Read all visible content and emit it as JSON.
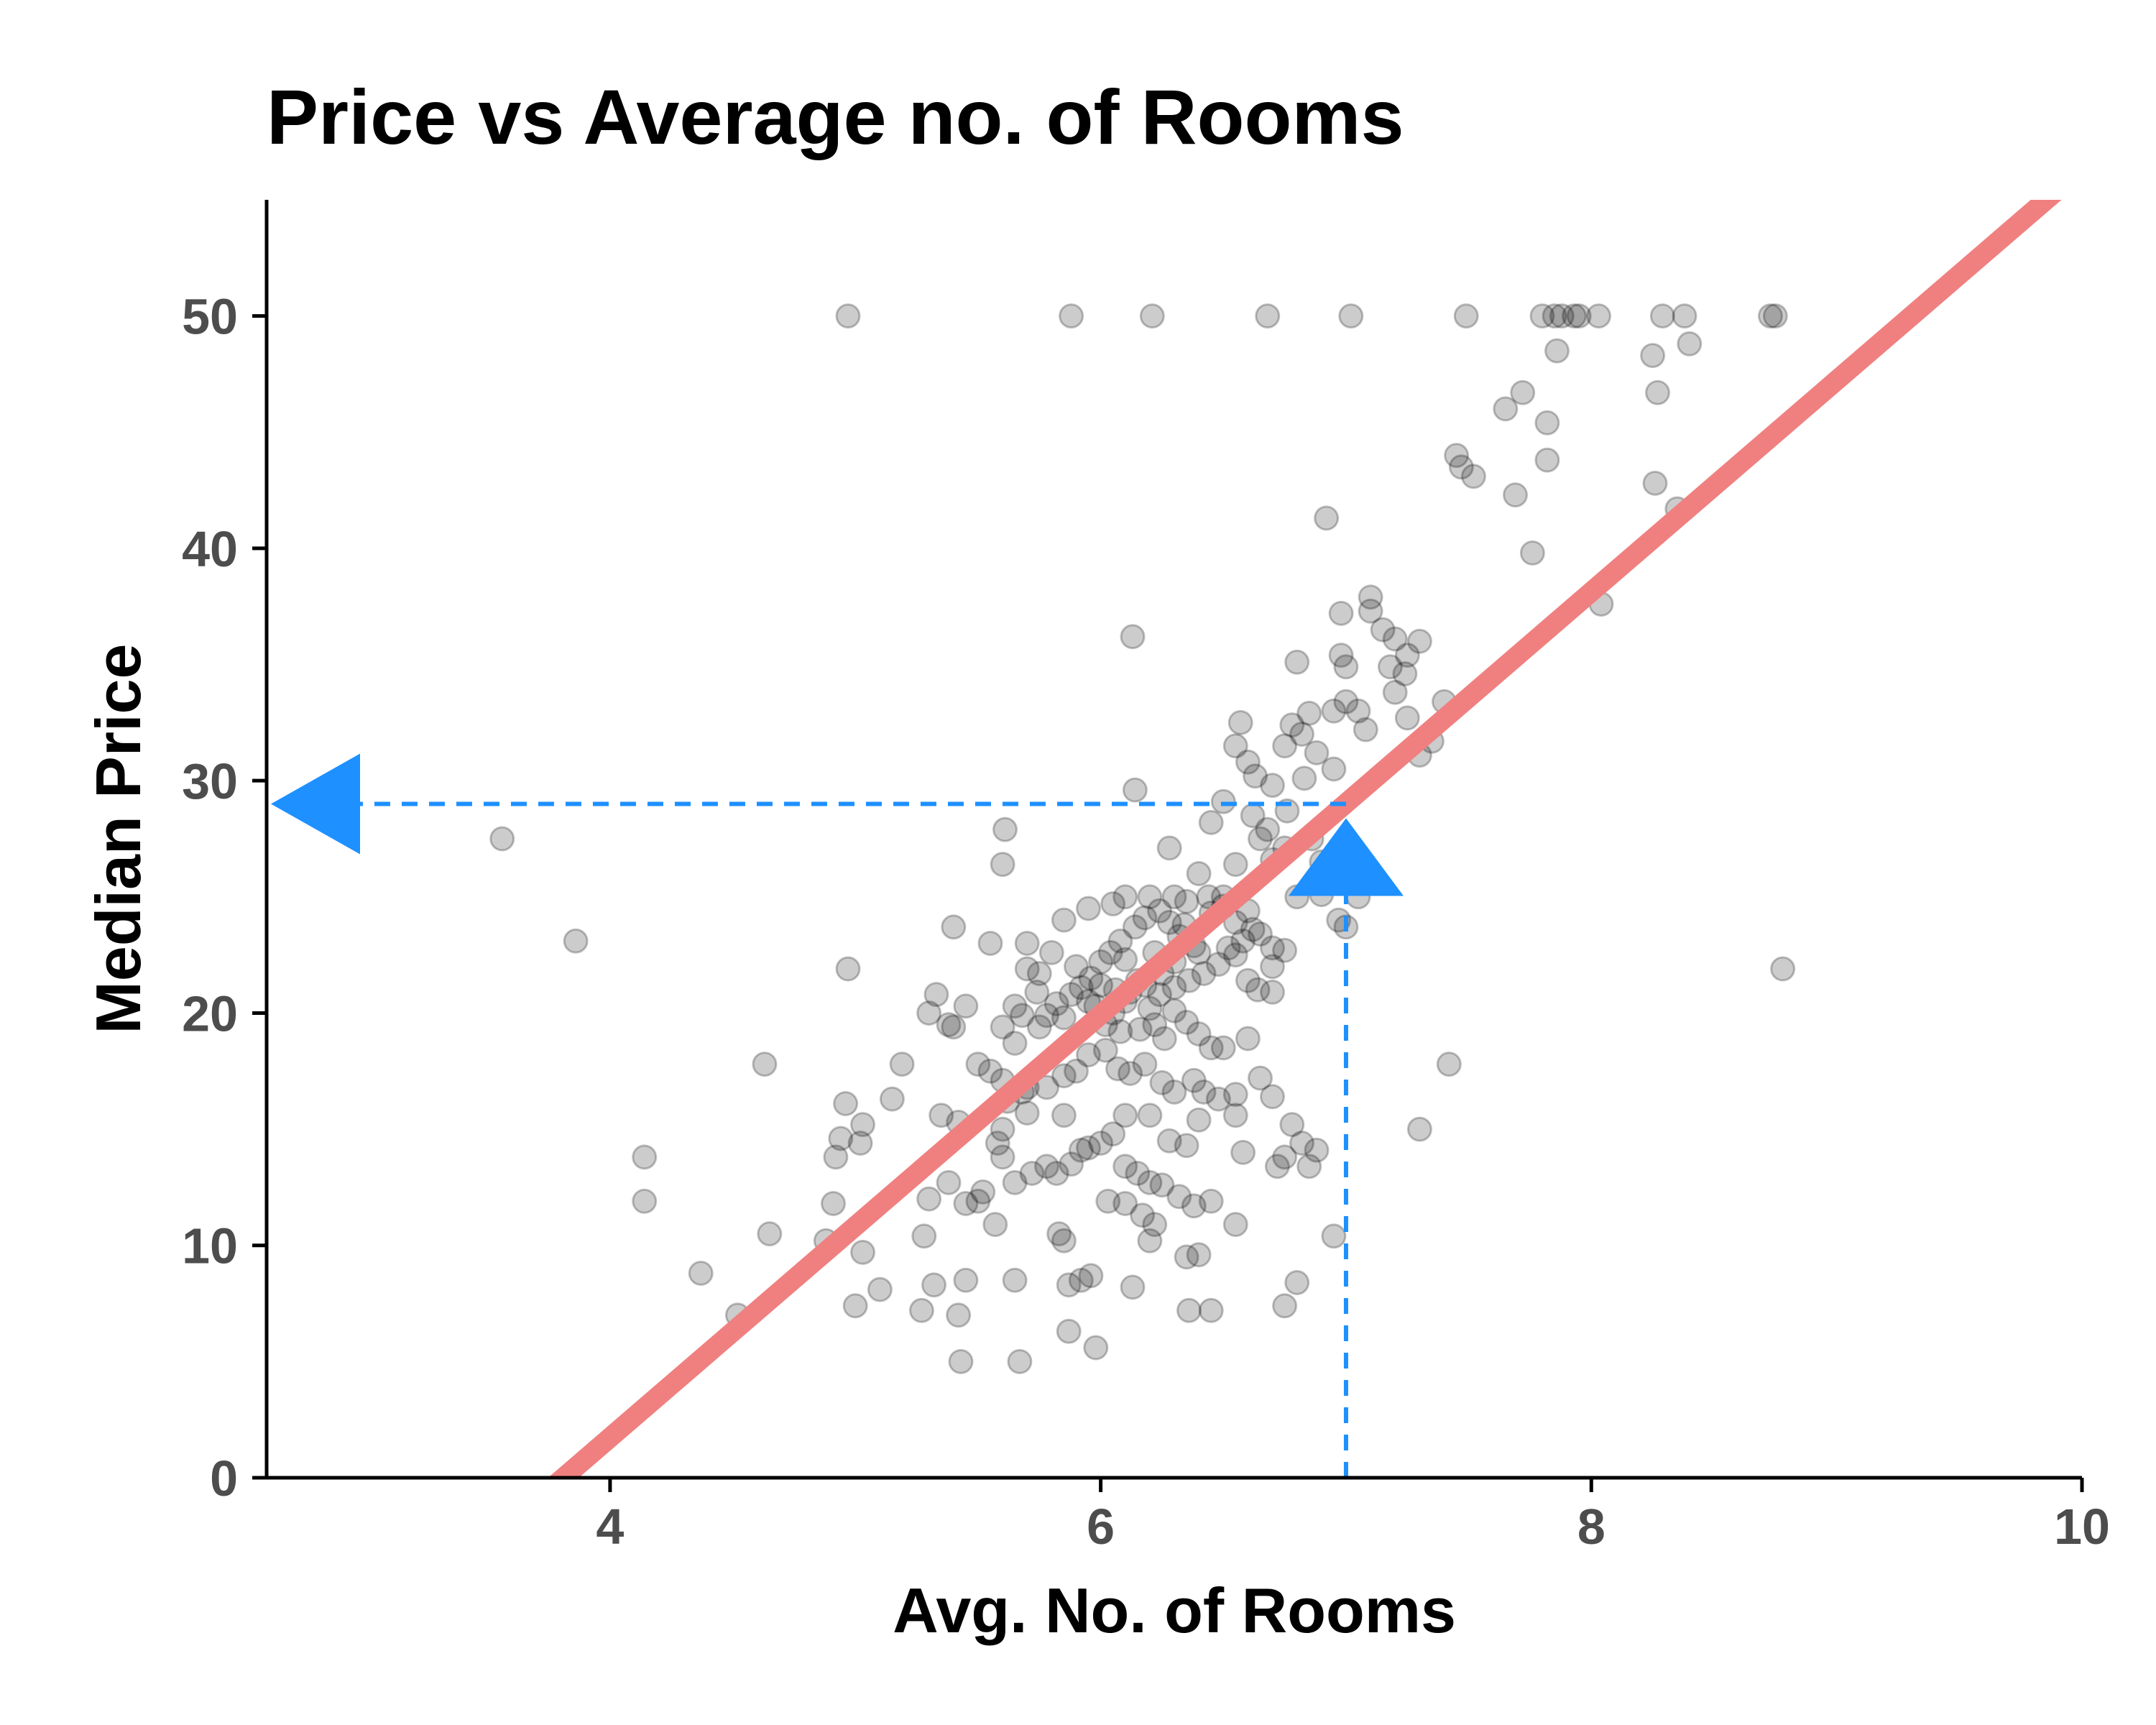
{
  "chart_data": {
    "type": "scatter",
    "title": "Price vs Average no. of Rooms",
    "xlabel": "Avg. No. of Rooms",
    "ylabel": "Median Price",
    "xlim": [
      2.6,
      10
    ],
    "ylim": [
      0,
      55
    ],
    "xticks": [
      4,
      6,
      8,
      10
    ],
    "yticks": [
      0,
      10,
      20,
      30,
      40,
      50
    ],
    "grid": false,
    "point_color": "#000000",
    "point_opacity": 0.2,
    "fit_line": {
      "color": "#F08080",
      "intercept": -34.67,
      "slope": 9.1
    },
    "prediction": {
      "color": "#1E90FF",
      "x": 7,
      "y": 29
    },
    "points": [
      [
        4.97,
        50
      ],
      [
        5.88,
        50
      ],
      [
        6.21,
        50
      ],
      [
        6.68,
        50
      ],
      [
        7.02,
        50
      ],
      [
        7.49,
        50
      ],
      [
        7.8,
        50
      ],
      [
        7.85,
        50
      ],
      [
        7.88,
        50
      ],
      [
        7.93,
        50
      ],
      [
        7.95,
        50
      ],
      [
        8.03,
        50
      ],
      [
        8.29,
        50
      ],
      [
        8.38,
        50
      ],
      [
        8.73,
        50
      ],
      [
        8.75,
        50
      ],
      [
        8.4,
        48.8
      ],
      [
        8.25,
        48.3
      ],
      [
        7.86,
        48.5
      ],
      [
        8.27,
        46.7
      ],
      [
        7.82,
        45.4
      ],
      [
        7.72,
        46.7
      ],
      [
        7.65,
        46
      ],
      [
        7.82,
        43.8
      ],
      [
        8.26,
        42.8
      ],
      [
        8.35,
        41.7
      ],
      [
        7.45,
        44
      ],
      [
        7.47,
        43.5
      ],
      [
        7.52,
        43.1
      ],
      [
        7.69,
        42.3
      ],
      [
        7.76,
        39.8
      ],
      [
        8.04,
        37.6
      ],
      [
        6.92,
        41.3
      ],
      [
        7.1,
        37.9
      ],
      [
        7.1,
        37.3
      ],
      [
        6.98,
        37.2
      ],
      [
        7.15,
        36.5
      ],
      [
        7.2,
        36.1
      ],
      [
        7.25,
        35.4
      ],
      [
        7.3,
        36
      ],
      [
        7.18,
        34.9
      ],
      [
        6.98,
        35.4
      ],
      [
        7.0,
        34.9
      ],
      [
        6.8,
        35.1
      ],
      [
        7.24,
        34.6
      ],
      [
        7.2,
        33.8
      ],
      [
        7.4,
        33.4
      ],
      [
        6.13,
        36.2
      ],
      [
        6.95,
        33
      ],
      [
        7.05,
        33
      ],
      [
        7.0,
        33.4
      ],
      [
        6.85,
        32.9
      ],
      [
        6.78,
        32.4
      ],
      [
        6.82,
        32
      ],
      [
        7.08,
        32.2
      ],
      [
        6.88,
        31.2
      ],
      [
        6.75,
        31.5
      ],
      [
        6.57,
        32.5
      ],
      [
        6.55,
        31.5
      ],
      [
        6.6,
        30.8
      ],
      [
        6.63,
        30.2
      ],
      [
        6.7,
        29.8
      ],
      [
        7.3,
        31.1
      ],
      [
        7.35,
        31.7
      ],
      [
        7.25,
        32.7
      ],
      [
        6.95,
        30.5
      ],
      [
        6.83,
        30.1
      ],
      [
        6.14,
        29.6
      ],
      [
        6.5,
        29.1
      ],
      [
        6.45,
        28.2
      ],
      [
        6.62,
        28.5
      ],
      [
        6.68,
        27.9
      ],
      [
        6.76,
        28.7
      ],
      [
        6.65,
        27.5
      ],
      [
        6.86,
        27.5
      ],
      [
        5.61,
        27.9
      ],
      [
        6.28,
        27.1
      ],
      [
        6.55,
        26.4
      ],
      [
        6.7,
        26.6
      ],
      [
        6.75,
        27.1
      ],
      [
        6.9,
        26.5
      ],
      [
        3.56,
        27.5
      ],
      [
        5.6,
        26.4
      ],
      [
        6.4,
        26
      ],
      [
        6.8,
        25
      ],
      [
        6.9,
        25.1
      ],
      [
        7.05,
        25
      ],
      [
        6.97,
        24
      ],
      [
        7.0,
        23.7
      ],
      [
        3.86,
        23.1
      ],
      [
        4.97,
        21.9
      ],
      [
        8.78,
        21.9
      ],
      [
        5.4,
        23.7
      ],
      [
        5.55,
        23
      ],
      [
        5.7,
        23
      ],
      [
        5.85,
        24
      ],
      [
        5.95,
        24.5
      ],
      [
        6.05,
        24.7
      ],
      [
        6.1,
        25
      ],
      [
        6.2,
        25
      ],
      [
        6.3,
        25
      ],
      [
        6.35,
        24.8
      ],
      [
        6.45,
        24.3
      ],
      [
        6.5,
        24.6
      ],
      [
        6.55,
        23.9
      ],
      [
        6.6,
        24.4
      ],
      [
        6.65,
        23.4
      ],
      [
        6.7,
        22.8
      ],
      [
        6.55,
        22.5
      ],
      [
        6.4,
        22.6
      ],
      [
        6.3,
        22.2
      ],
      [
        6.25,
        21.7
      ],
      [
        6.15,
        21.4
      ],
      [
        6.0,
        21.2
      ],
      [
        5.9,
        22
      ],
      [
        5.8,
        22.6
      ],
      [
        5.75,
        21.7
      ],
      [
        5.7,
        21.9
      ],
      [
        5.65,
        20.3
      ],
      [
        5.6,
        19.4
      ],
      [
        5.65,
        18.7
      ],
      [
        5.75,
        19.4
      ],
      [
        5.85,
        19.8
      ],
      [
        5.95,
        20.5
      ],
      [
        6.05,
        20
      ],
      [
        6.1,
        20.5
      ],
      [
        6.2,
        20.2
      ],
      [
        6.3,
        20.1
      ],
      [
        6.35,
        19.6
      ],
      [
        6.4,
        19.1
      ],
      [
        6.45,
        18.5
      ],
      [
        6.5,
        18.5
      ],
      [
        6.6,
        18.9
      ],
      [
        6.7,
        20.9
      ],
      [
        6.75,
        22.7
      ],
      [
        5.3,
        20
      ],
      [
        5.33,
        20.8
      ],
      [
        5.38,
        19.5
      ],
      [
        5.4,
        19.4
      ],
      [
        5.45,
        20.3
      ],
      [
        5.5,
        17.8
      ],
      [
        5.55,
        17.5
      ],
      [
        5.6,
        17.1
      ],
      [
        5.62,
        16.2
      ],
      [
        5.68,
        16.6
      ],
      [
        5.7,
        16.8
      ],
      [
        5.78,
        16.8
      ],
      [
        5.85,
        17.3
      ],
      [
        5.9,
        17.5
      ],
      [
        5.95,
        18.2
      ],
      [
        6.02,
        18.4
      ],
      [
        6.07,
        17.6
      ],
      [
        6.12,
        17.4
      ],
      [
        6.18,
        17.8
      ],
      [
        6.25,
        17
      ],
      [
        6.3,
        16.6
      ],
      [
        6.38,
        17.1
      ],
      [
        6.42,
        16.6
      ],
      [
        6.48,
        16.3
      ],
      [
        6.55,
        16.5
      ],
      [
        6.65,
        17.2
      ],
      [
        6.7,
        16.4
      ],
      [
        6.78,
        15.2
      ],
      [
        6.82,
        14.4
      ],
      [
        6.88,
        14.1
      ],
      [
        6.75,
        13.8
      ],
      [
        6.72,
        13.4
      ],
      [
        6.85,
        13.4
      ],
      [
        6.58,
        14
      ],
      [
        6.55,
        15.6
      ],
      [
        6.4,
        15.4
      ],
      [
        6.35,
        14.3
      ],
      [
        6.28,
        14.5
      ],
      [
        6.2,
        15.6
      ],
      [
        6.1,
        15.6
      ],
      [
        6.05,
        14.8
      ],
      [
        6.0,
        14.4
      ],
      [
        5.95,
        14.2
      ],
      [
        5.88,
        13.5
      ],
      [
        5.82,
        13.1
      ],
      [
        5.78,
        13.4
      ],
      [
        5.72,
        13.1
      ],
      [
        5.65,
        12.7
      ],
      [
        5.6,
        13.8
      ],
      [
        5.52,
        12.3
      ],
      [
        5.5,
        11.9
      ],
      [
        5.45,
        11.8
      ],
      [
        5.38,
        12.7
      ],
      [
        5.3,
        12
      ],
      [
        5.28,
        10.4
      ],
      [
        5.57,
        10.9
      ],
      [
        5.6,
        15
      ],
      [
        5.7,
        15.7
      ],
      [
        5.85,
        15.6
      ],
      [
        5.92,
        14.1
      ],
      [
        6.1,
        13.4
      ],
      [
        6.15,
        13.1
      ],
      [
        6.2,
        12.7
      ],
      [
        6.25,
        12.6
      ],
      [
        6.32,
        12.1
      ],
      [
        6.38,
        11.7
      ],
      [
        6.45,
        11.9
      ],
      [
        6.55,
        10.9
      ],
      [
        6.17,
        11.3
      ],
      [
        6.1,
        11.8
      ],
      [
        6.03,
        11.9
      ],
      [
        5.83,
        10.5
      ],
      [
        5.85,
        10.2
      ],
      [
        5.92,
        8.5
      ],
      [
        5.96,
        8.7
      ],
      [
        5.87,
        8.3
      ],
      [
        5.65,
        8.5
      ],
      [
        5.45,
        8.5
      ],
      [
        5.32,
        8.3
      ],
      [
        5.27,
        7.2
      ],
      [
        5.42,
        7
      ],
      [
        5.87,
        6.3
      ],
      [
        5.98,
        5.6
      ],
      [
        5.43,
        5
      ],
      [
        5.67,
        5
      ],
      [
        6.13,
        8.2
      ],
      [
        6.2,
        10.2
      ],
      [
        6.22,
        10.9
      ],
      [
        6.35,
        9.5
      ],
      [
        6.4,
        9.6
      ],
      [
        6.36,
        7.2
      ],
      [
        6.45,
        7.2
      ],
      [
        6.75,
        7.4
      ],
      [
        6.8,
        8.4
      ],
      [
        6.95,
        10.4
      ],
      [
        4.96,
        16.1
      ],
      [
        4.92,
        13.8
      ],
      [
        4.94,
        14.6
      ],
      [
        5.03,
        15.2
      ],
      [
        5.02,
        14.4
      ],
      [
        5.15,
        16.3
      ],
      [
        5.19,
        17.8
      ],
      [
        4.91,
        11.8
      ],
      [
        4.88,
        10.2
      ],
      [
        5.03,
        9.7
      ],
      [
        5.0,
        7.4
      ],
      [
        5.1,
        8.1
      ],
      [
        4.63,
        17.8
      ],
      [
        4.14,
        13.8
      ],
      [
        4.14,
        11.9
      ],
      [
        4.65,
        10.5
      ],
      [
        4.37,
        8.8
      ],
      [
        4.52,
        7
      ],
      [
        7.42,
        17.8
      ],
      [
        7.3,
        15
      ],
      [
        5.35,
        15.6
      ],
      [
        5.42,
        15.3
      ],
      [
        5.58,
        14.4
      ],
      [
        6.02,
        19.5
      ],
      [
        6.08,
        19.2
      ],
      [
        6.16,
        19.3
      ],
      [
        6.22,
        19.5
      ],
      [
        6.26,
        18.9
      ],
      [
        6.06,
        21
      ],
      [
        6.12,
        20.9
      ],
      [
        6.18,
        21.2
      ],
      [
        6.24,
        20.8
      ],
      [
        6.3,
        21.1
      ],
      [
        6.36,
        21.4
      ],
      [
        6.42,
        21.7
      ],
      [
        6.48,
        22.1
      ],
      [
        6.52,
        22.8
      ],
      [
        6.58,
        23.1
      ],
      [
        6.62,
        23.6
      ],
      [
        5.82,
        20.4
      ],
      [
        5.88,
        20.8
      ],
      [
        5.92,
        21.1
      ],
      [
        5.96,
        21.5
      ],
      [
        6.0,
        22.2
      ],
      [
        6.04,
        22.6
      ],
      [
        6.08,
        23.1
      ],
      [
        6.14,
        23.7
      ],
      [
        6.18,
        24.1
      ],
      [
        6.24,
        24.4
      ],
      [
        6.28,
        23.9
      ],
      [
        6.32,
        23.3
      ],
      [
        6.38,
        22.9
      ],
      [
        5.74,
        20.9
      ],
      [
        5.78,
        19.9
      ],
      [
        5.68,
        19.9
      ],
      [
        5.98,
        20.3
      ],
      [
        6.1,
        22.3
      ],
      [
        6.22,
        22.6
      ],
      [
        6.34,
        23.8
      ],
      [
        6.44,
        25
      ],
      [
        6.5,
        25
      ],
      [
        6.6,
        21.4
      ],
      [
        6.64,
        21
      ],
      [
        6.7,
        22
      ]
    ]
  }
}
